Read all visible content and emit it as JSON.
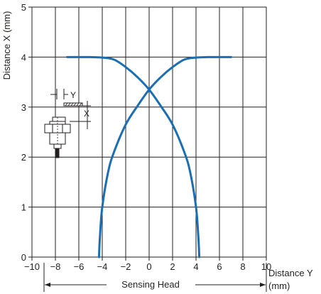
{
  "chart_data": {
    "type": "line",
    "title": "",
    "xlabel_line1": "Distance Y",
    "xlabel_line2": "(mm)",
    "ylabel": "Distance X (mm)",
    "sublabel": "Sensing Head",
    "xlim": [
      -10,
      10
    ],
    "ylim": [
      0,
      5
    ],
    "x_ticks": [
      -10,
      -8,
      -6,
      -4,
      -2,
      0,
      2,
      4,
      6,
      8,
      10
    ],
    "x_tick_labels": [
      "−10",
      "−8",
      "−6",
      "−4",
      "−2",
      "0",
      "2",
      "4",
      "6",
      "8",
      "10"
    ],
    "y_ticks": [
      0,
      1,
      2,
      3,
      4,
      5
    ],
    "y_tick_labels": [
      "0",
      "1",
      "2",
      "3",
      "4",
      "5"
    ],
    "grid": true,
    "line_color": "#1a6eb3",
    "series": [
      {
        "points": [
          [
            -7,
            4.0
          ],
          [
            -6,
            4.0
          ],
          [
            -5,
            4.0
          ],
          [
            -4,
            3.99
          ],
          [
            -3,
            3.95
          ],
          [
            -2,
            3.8
          ],
          [
            -1,
            3.6
          ],
          [
            0,
            3.35
          ],
          [
            1,
            3.02
          ],
          [
            2,
            2.65
          ],
          [
            3,
            2.1
          ],
          [
            3.5,
            1.7
          ],
          [
            4,
            1.0
          ],
          [
            4.2,
            0.4
          ],
          [
            4.28,
            0.0
          ]
        ]
      },
      {
        "points": [
          [
            7,
            4.0
          ],
          [
            6,
            4.0
          ],
          [
            5,
            4.0
          ],
          [
            4,
            3.99
          ],
          [
            3,
            3.95
          ],
          [
            2,
            3.8
          ],
          [
            1,
            3.6
          ],
          [
            0,
            3.35
          ],
          [
            -1,
            3.02
          ],
          [
            -2,
            2.65
          ],
          [
            -3,
            2.1
          ],
          [
            -3.5,
            1.7
          ],
          [
            -4,
            1.0
          ],
          [
            -4.2,
            0.4
          ],
          [
            -4.28,
            0.0
          ]
        ]
      }
    ],
    "inset": {
      "y_label": "Y",
      "x_label": "X"
    }
  }
}
